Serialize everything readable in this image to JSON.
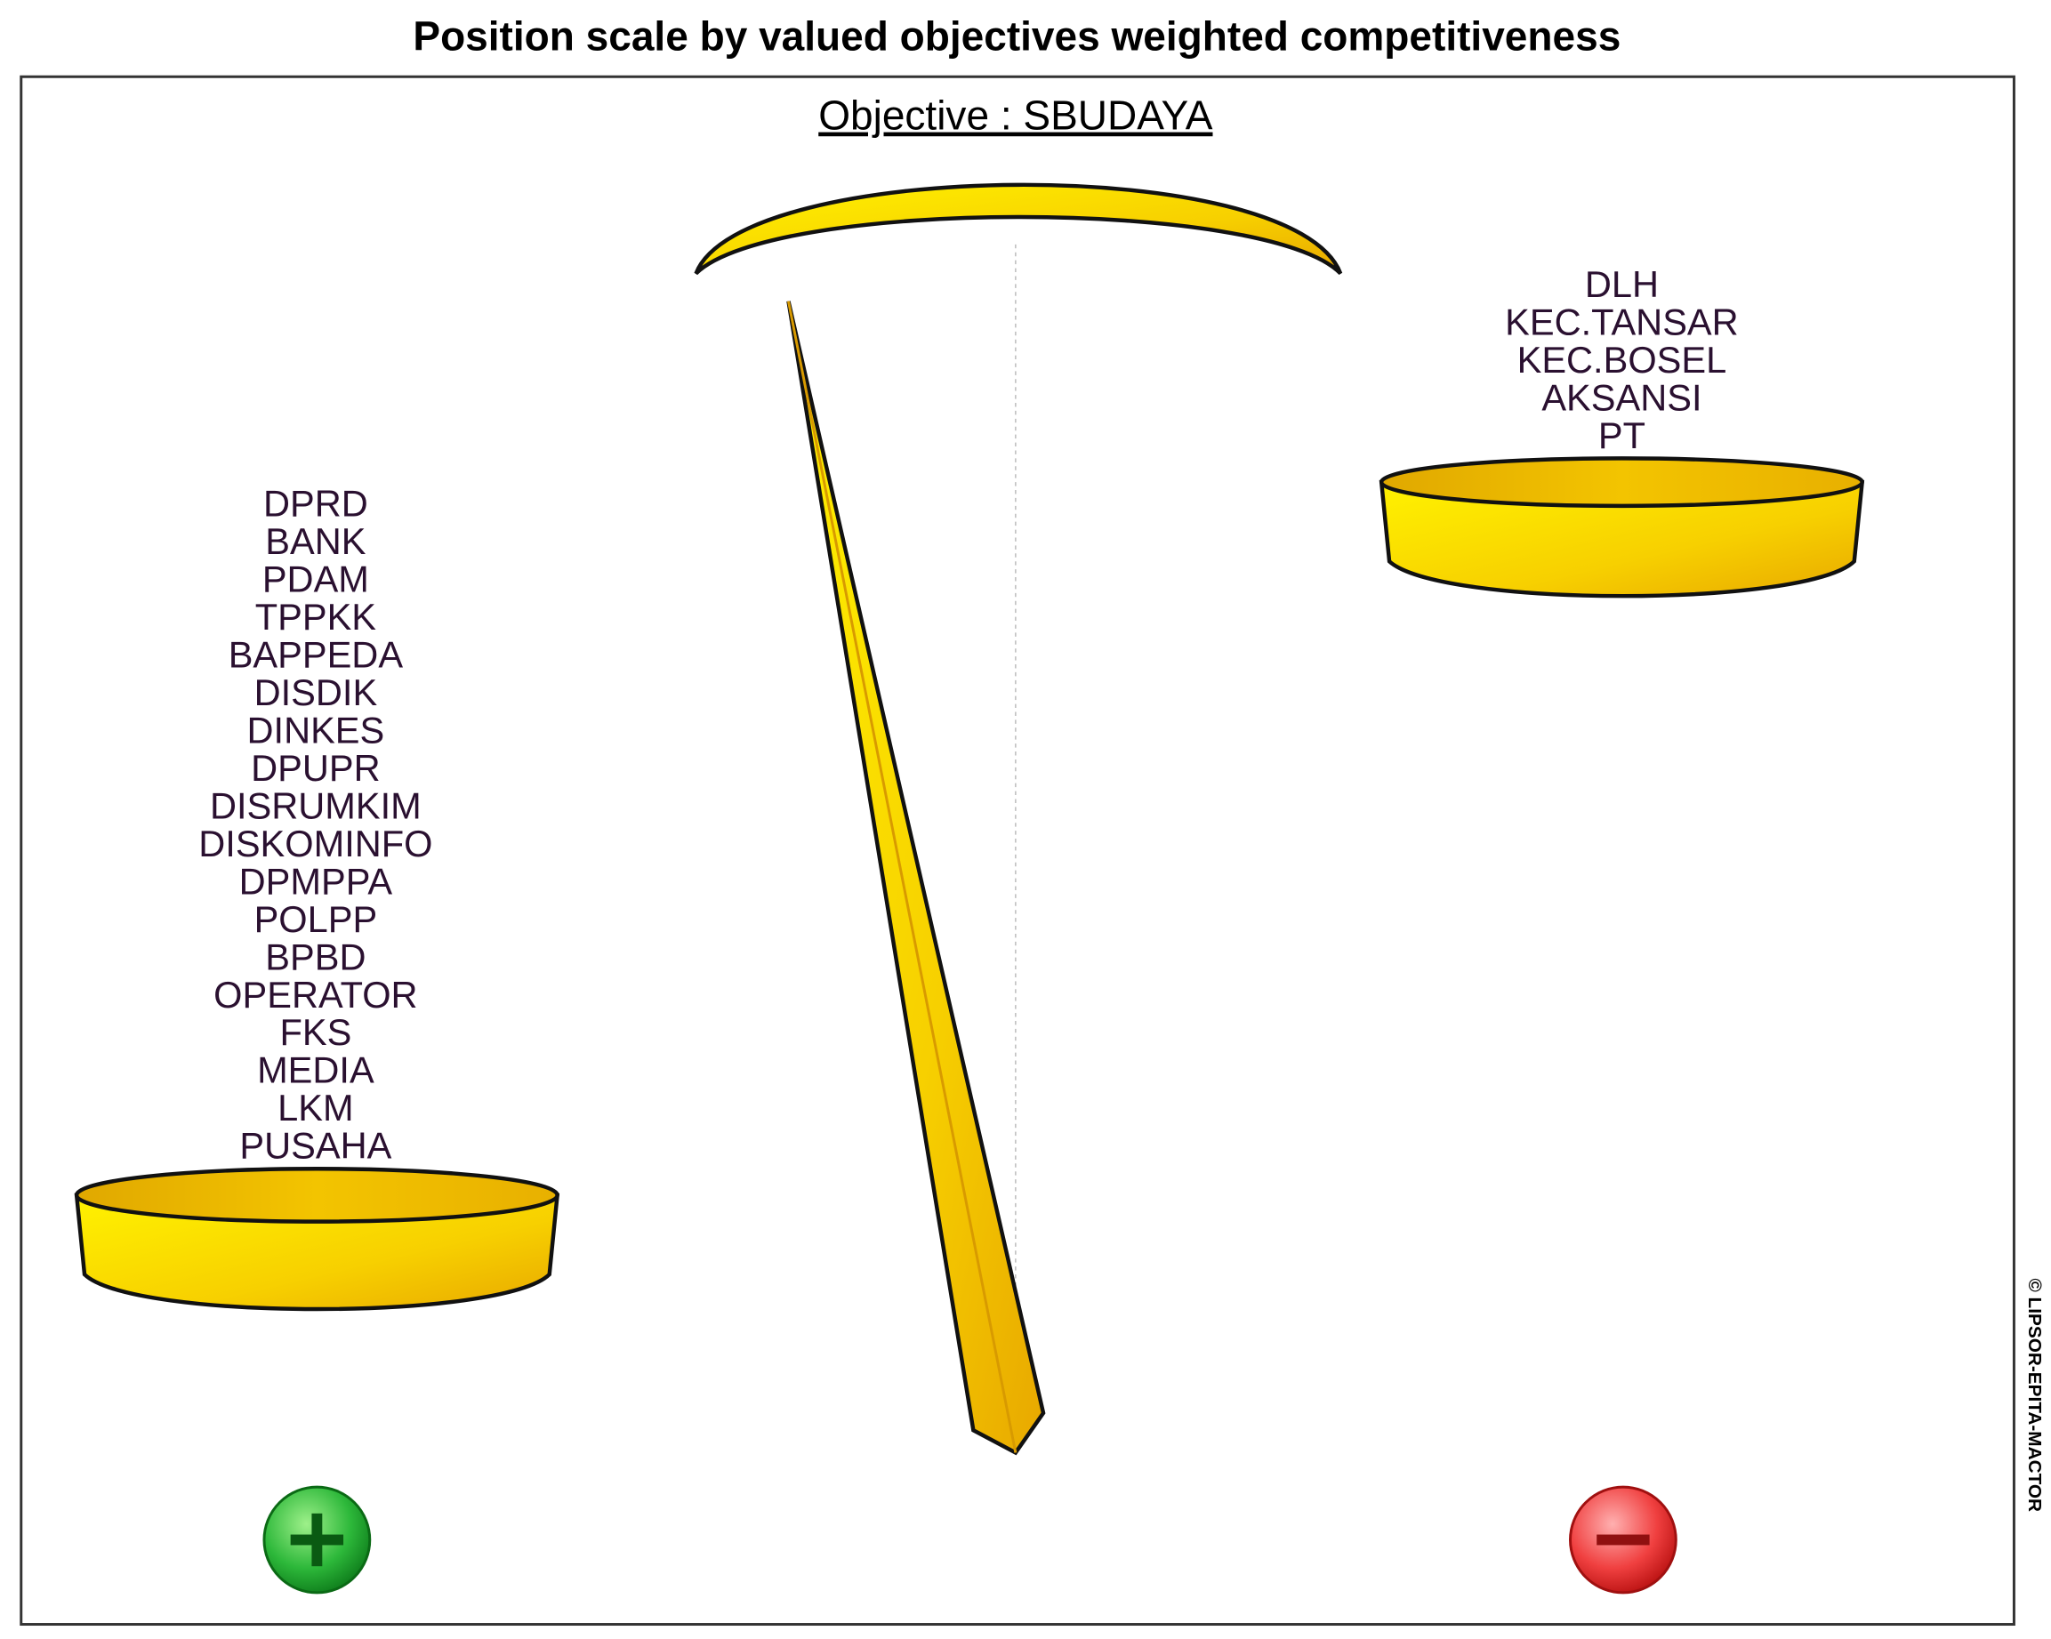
{
  "title": "Position scale by valued objectives weighted competitiveness",
  "objective_label": "Objective : SBUDAYA",
  "left_pan": {
    "sign": "plus",
    "actors": [
      "DPRD",
      "BANK",
      "PDAM",
      "TPPKK",
      "BAPPEDA",
      "DISDIK",
      "DINKES",
      "DPUPR",
      "DISRUMKIM",
      "DISKOMINFO",
      "DPMPPA",
      "POLPP",
      "BPBD",
      "OPERATOR",
      "FKS",
      "MEDIA",
      "LKM",
      "PUSAHA"
    ]
  },
  "right_pan": {
    "sign": "minus",
    "actors": [
      "DLH",
      "KEC.TANSAR",
      "KEC.BOSEL",
      "AKSANSI",
      "PT"
    ]
  },
  "scale_tilt": "left (favor)",
  "copyright": "© LIPSOR-EPITA-MACTOR",
  "colors": {
    "gold": "#f5c400",
    "plus": "#1a9a2a",
    "minus": "#e02020"
  }
}
